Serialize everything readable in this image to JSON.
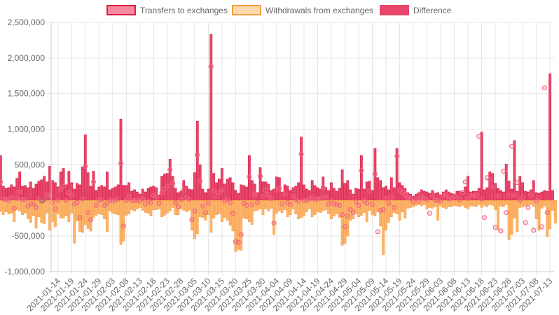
{
  "chart_data": {
    "type": "bar",
    "legend": [
      {
        "name": "Transfers to exchanges",
        "fill": "#f48aa0",
        "stroke": "#e11d48"
      },
      {
        "name": "Withdrawals from exchanges",
        "fill": "#fdd9ae",
        "stroke": "#f59e42"
      },
      {
        "name": "Difference",
        "fill": "#e8466b",
        "stroke": "#e8466b"
      }
    ],
    "legend_position": "top",
    "ylim": [
      -1000000,
      2500000
    ],
    "y_ticks": [
      "2,500,000",
      "2,000,000",
      "1,500,000",
      "1,000,000",
      "500,000",
      "0",
      "-500,000",
      "-1,000,000"
    ],
    "y_tick_values": [
      2500000,
      2000000,
      1500000,
      1000000,
      500000,
      0,
      -500000,
      -1000000
    ],
    "x_tick_labels": [
      "2021-01-14",
      "2021-01-19",
      "2021-01-24",
      "2021-01-29",
      "2021-02-03",
      "2021-02-08",
      "2021-02-13",
      "2021-02-18",
      "2021-02-23",
      "2021-02-28",
      "2021-03-05",
      "2021-03-10",
      "2021-03-15",
      "2021-03-20",
      "2021-03-25",
      "2021-03-30",
      "2021-04-04",
      "2021-04-09",
      "2021-04-14",
      "2021-04-19",
      "2021-04-24",
      "2021-04-29",
      "2021-05-04",
      "2021-05-09",
      "2021-05-14",
      "2021-05-19",
      "2021-05-24",
      "2021-05-29",
      "2021-06-03",
      "2021-06-08",
      "2021-06-13",
      "2021-06-18",
      "2021-06-23",
      "2021-06-28",
      "2021-07-03",
      "2021-07-08",
      "2021-07-13"
    ],
    "tick_every_days": 5,
    "grid": true,
    "x_start": "2021-01-12",
    "x_end": "2021-07-14",
    "colors": {
      "transfers_bar": "#e11d48",
      "withdrawals_bar": "#f59e42",
      "difference_point": "#f0627e",
      "grid": "#e5e5e5",
      "zero_line": "#bbbbbb"
    },
    "series": [
      {
        "name": "Transfers to exchanges",
        "values": [
          210000,
          230000,
          220000,
          320000,
          410000,
          300000,
          160000,
          230000,
          180000,
          630000,
          200000,
          170000,
          180000,
          220000,
          190000,
          310000,
          400000,
          200000,
          210000,
          180000,
          260000,
          170000,
          230000,
          270000,
          290000,
          340000,
          260000,
          480000,
          280000,
          250000,
          190000,
          400000,
          450000,
          220000,
          410000,
          250000,
          160000,
          240000,
          220000,
          470000,
          920000,
          390000,
          200000,
          410000,
          140000,
          190000,
          210000,
          190000,
          400000,
          150000,
          170000,
          190000,
          220000,
          1140000,
          210000,
          210000,
          250000,
          130000,
          150000,
          120000,
          90000,
          160000,
          120000,
          170000,
          190000,
          200000,
          180000,
          80000,
          340000,
          370000,
          380000,
          580000,
          340000,
          170000,
          110000,
          130000,
          280000,
          200000,
          160000,
          150000,
          390000,
          1110000,
          500000,
          160000,
          110000,
          160000,
          2330000,
          380000,
          250000,
          300000,
          450000,
          230000,
          300000,
          320000,
          250000,
          140000,
          100000,
          220000,
          210000,
          190000,
          630000,
          280000,
          230000,
          110000,
          460000,
          260000,
          260000,
          230000,
          140000,
          160000,
          330000,
          320000,
          120000,
          220000,
          200000,
          140000,
          180000,
          200000,
          250000,
          890000,
          220000,
          160000,
          140000,
          280000,
          210000,
          180000,
          160000,
          330000,
          180000,
          140000,
          250000,
          170000,
          130000,
          170000,
          430000,
          240000,
          280000,
          150000,
          90000,
          170000,
          160000,
          630000,
          160000,
          260000,
          270000,
          140000,
          730000,
          320000,
          280000,
          180000,
          200000,
          150000,
          320000,
          180000,
          730000,
          250000,
          210000,
          170000,
          110000,
          90000,
          60000,
          90000,
          110000,
          150000,
          130000,
          120000,
          100000,
          140000,
          100000,
          110000,
          80000,
          120000,
          150000,
          120000,
          100000,
          90000,
          130000,
          130000,
          120000,
          190000,
          340000,
          120000,
          130000,
          130000,
          170000,
          960000,
          150000,
          180000,
          400000,
          380000,
          240000,
          170000,
          140000,
          120000,
          510000,
          270000,
          160000,
          840000,
          130000,
          340000,
          250000,
          130000,
          120000,
          150000,
          280000,
          110000,
          100000,
          120000,
          140000,
          130000,
          1780000,
          140000
        ],
        "color": "#e11d48"
      },
      {
        "name": "Withdrawals from exchanges",
        "values": [
          -130000,
          -160000,
          -200000,
          -250000,
          -180000,
          -240000,
          -220000,
          -160000,
          -370000,
          -150000,
          -200000,
          -160000,
          -190000,
          -180000,
          -300000,
          -130000,
          -150000,
          -200000,
          -180000,
          -260000,
          -310000,
          -220000,
          -390000,
          -230000,
          -310000,
          -330000,
          -180000,
          -420000,
          -300000,
          -370000,
          -190000,
          -250000,
          -250000,
          -220000,
          -300000,
          -180000,
          -600000,
          -290000,
          -440000,
          -450000,
          -340000,
          -400000,
          -430000,
          -240000,
          -210000,
          -190000,
          -200000,
          -260000,
          -440000,
          -150000,
          -180000,
          -190000,
          -200000,
          -620000,
          -570000,
          -210000,
          -190000,
          -130000,
          -150000,
          -120000,
          -100000,
          -140000,
          -170000,
          -180000,
          -220000,
          -130000,
          -130000,
          -120000,
          -230000,
          -210000,
          -180000,
          -150000,
          -100000,
          -200000,
          -200000,
          -120000,
          -140000,
          -160000,
          -140000,
          -420000,
          -540000,
          -470000,
          -230000,
          -240000,
          -280000,
          -200000,
          -450000,
          -250000,
          -200000,
          -190000,
          -300000,
          -240000,
          -280000,
          -350000,
          -430000,
          -720000,
          -690000,
          -700000,
          -250000,
          -260000,
          -300000,
          -340000,
          -150000,
          -140000,
          -120000,
          -200000,
          -120000,
          -150000,
          -110000,
          -480000,
          -180000,
          -150000,
          -170000,
          -130000,
          -230000,
          -200000,
          -120000,
          -190000,
          -260000,
          -240000,
          -220000,
          -160000,
          -120000,
          -230000,
          -200000,
          -160000,
          -170000,
          -150000,
          -130000,
          -190000,
          -260000,
          -220000,
          -190000,
          -240000,
          -630000,
          -610000,
          -500000,
          -280000,
          -260000,
          -190000,
          -230000,
          -210000,
          -170000,
          -300000,
          -140000,
          -200000,
          -220000,
          -160000,
          -360000,
          -760000,
          -420000,
          -310000,
          -230000,
          -170000,
          -190000,
          -280000,
          -160000,
          -250000,
          -110000,
          -100000,
          -90000,
          -70000,
          -60000,
          -80000,
          -60000,
          -120000,
          -100000,
          -110000,
          -90000,
          -280000,
          -80000,
          -100000,
          -120000,
          -90000,
          -90000,
          -70000,
          -80000,
          -90000,
          -70000,
          -100000,
          -120000,
          -80000,
          -80000,
          -90000,
          -60000,
          -100000,
          -70000,
          -90000,
          -60000,
          -70000,
          -130000,
          -420000,
          -80000,
          -90000,
          -60000,
          -550000,
          -480000,
          -250000,
          -440000,
          -100000,
          -90000,
          -80000,
          -70000,
          -60000,
          -90000,
          -260000,
          -420000,
          -110000,
          -80000,
          -510000,
          -400000,
          -140000,
          -320000
        ],
        "color": "#f59e42"
      },
      {
        "name": "Difference",
        "values": [
          110000,
          130000,
          100000,
          160000,
          170000,
          -80000,
          -60000,
          10000,
          -150000,
          260000,
          20000,
          10000,
          0,
          40000,
          -110000,
          30000,
          120000,
          10000,
          10000,
          -80000,
          -50000,
          -50000,
          -100000,
          30000,
          -10000,
          10000,
          80000,
          60000,
          -30000,
          -120000,
          0,
          150000,
          200000,
          0,
          110000,
          70000,
          -50000,
          -30000,
          -240000,
          20000,
          480000,
          -170000,
          -270000,
          260000,
          -70000,
          0,
          10000,
          -70000,
          -40000,
          0,
          -10000,
          0,
          20000,
          520000,
          -360000,
          0,
          60000,
          0,
          0,
          0,
          -10000,
          20000,
          -50000,
          -10000,
          -30000,
          70000,
          50000,
          -40000,
          110000,
          160000,
          200000,
          430000,
          240000,
          -30000,
          -90000,
          10000,
          140000,
          40000,
          20000,
          -270000,
          -150000,
          640000,
          270000,
          -80000,
          -170000,
          -40000,
          1880000,
          130000,
          50000,
          110000,
          150000,
          -10000,
          20000,
          -30000,
          -180000,
          -580000,
          -590000,
          -480000,
          -40000,
          -70000,
          330000,
          -60000,
          80000,
          -30000,
          340000,
          60000,
          140000,
          80000,
          30000,
          -320000,
          150000,
          170000,
          -50000,
          90000,
          -30000,
          -60000,
          60000,
          10000,
          -10000,
          650000,
          0,
          0,
          20000,
          50000,
          10000,
          20000,
          30000,
          180000,
          50000,
          -50000,
          -10000,
          -50000,
          -60000,
          -70000,
          -200000,
          -370000,
          -220000,
          -130000,
          -170000,
          -20000,
          -70000,
          420000,
          -10000,
          -40000,
          130000,
          -60000,
          370000,
          -440000,
          -140000,
          -130000,
          30000,
          -40000,
          40000,
          -100000,
          620000,
          140000,
          110000,
          80000,
          40000,
          30000,
          -20000,
          30000,
          -10000,
          50000,
          30000,
          10000,
          -180000,
          60000,
          0,
          0,
          -10000,
          60000,
          80000,
          20000,
          30000,
          60000,
          50000,
          10000,
          110000,
          260000,
          30000,
          70000,
          60000,
          80000,
          900000,
          20000,
          -240000,
          320000,
          290000,
          190000,
          -380000,
          60000,
          -430000,
          410000,
          -170000,
          70000,
          760000,
          70000,
          250000,
          0,
          40000,
          -310000,
          -100000,
          80000,
          -420000,
          -10000,
          40000,
          -370000,
          1580000,
          -170000
        ],
        "color": "#f0627e"
      }
    ]
  }
}
